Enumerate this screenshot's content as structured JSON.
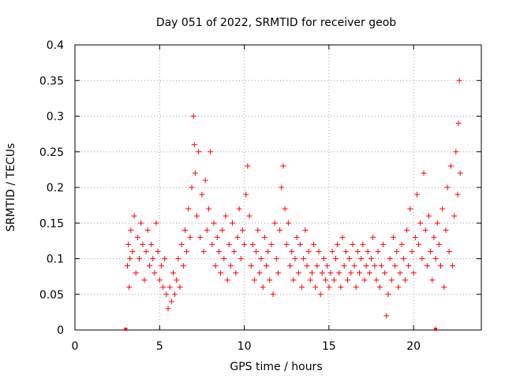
{
  "chart_data": {
    "type": "scatter",
    "title": "Day 051 of 2022, SRMTID for receiver geob",
    "xlabel": "GPS time / hours",
    "ylabel": "SRMTID / TECUs",
    "xlim": [
      0,
      24
    ],
    "ylim": [
      0,
      0.4
    ],
    "xticks": [
      0,
      5,
      10,
      15,
      20
    ],
    "xtick_labels": [
      "0",
      "5",
      "10",
      "15",
      "20"
    ],
    "yticks": [
      0,
      0.05,
      0.1,
      0.15,
      0.2,
      0.25,
      0.3,
      0.35,
      0.4
    ],
    "ytick_labels": [
      "0",
      "0.05",
      "0.1",
      "0.15",
      "0.2",
      "0.25",
      "0.3",
      "0.35",
      "0.4"
    ],
    "grid": true,
    "marker": "plus",
    "colors": {
      "series": "#ff0000",
      "grid": "#a0a0a0",
      "axis": "#000000"
    },
    "series": [
      {
        "name": "SRMTID",
        "x": [
          3.1,
          3.15,
          3.2,
          3.25,
          3.3,
          3.4,
          3.5,
          3.6,
          3.7,
          3.8,
          3.9,
          4.0,
          4.1,
          4.2,
          4.3,
          4.4,
          4.5,
          4.6,
          4.7,
          4.8,
          4.9,
          5.0,
          5.1,
          5.2,
          5.3,
          5.4,
          5.5,
          5.6,
          5.7,
          5.8,
          5.9,
          6.0,
          6.1,
          6.2,
          6.3,
          6.4,
          6.5,
          6.6,
          6.7,
          6.8,
          6.9,
          7.0,
          7.05,
          7.1,
          7.2,
          7.3,
          7.4,
          7.5,
          7.6,
          7.7,
          7.8,
          7.9,
          8.0,
          8.1,
          8.2,
          8.3,
          8.4,
          8.5,
          8.6,
          8.7,
          8.8,
          8.9,
          9.0,
          9.1,
          9.2,
          9.3,
          9.4,
          9.5,
          9.6,
          9.7,
          9.8,
          9.9,
          10.0,
          10.1,
          10.2,
          10.3,
          10.4,
          10.5,
          10.6,
          10.7,
          10.8,
          10.9,
          11.0,
          11.1,
          11.2,
          11.3,
          11.4,
          11.5,
          11.6,
          11.7,
          11.8,
          11.9,
          12.0,
          12.1,
          12.2,
          12.3,
          12.4,
          12.5,
          12.6,
          12.7,
          12.8,
          12.9,
          13.0,
          13.1,
          13.2,
          13.3,
          13.4,
          13.5,
          13.6,
          13.7,
          13.8,
          13.9,
          14.0,
          14.1,
          14.2,
          14.3,
          14.4,
          14.5,
          14.6,
          14.7,
          14.8,
          14.9,
          15.0,
          15.1,
          15.2,
          15.3,
          15.4,
          15.5,
          15.6,
          15.7,
          15.8,
          15.9,
          16.0,
          16.1,
          16.2,
          16.3,
          16.4,
          16.5,
          16.6,
          16.7,
          16.8,
          16.9,
          17.0,
          17.1,
          17.2,
          17.3,
          17.4,
          17.5,
          17.6,
          17.7,
          17.8,
          17.9,
          18.0,
          18.1,
          18.2,
          18.3,
          18.4,
          18.5,
          18.6,
          18.7,
          18.8,
          18.9,
          19.0,
          19.1,
          19.2,
          19.3,
          19.4,
          19.5,
          19.6,
          19.7,
          19.8,
          19.9,
          20.0,
          20.1,
          20.2,
          20.3,
          20.4,
          20.5,
          20.6,
          20.7,
          20.8,
          20.9,
          21.0,
          21.1,
          21.2,
          21.3,
          21.4,
          21.5,
          21.6,
          21.7,
          21.8,
          21.9,
          22.0,
          22.1,
          22.2,
          22.3,
          22.4,
          22.5,
          22.6,
          22.65,
          22.7,
          22.75
        ],
        "y": [
          0.09,
          0.12,
          0.06,
          0.1,
          0.14,
          0.11,
          0.16,
          0.08,
          0.13,
          0.1,
          0.15,
          0.12,
          0.07,
          0.11,
          0.14,
          0.09,
          0.12,
          0.1,
          0.08,
          0.15,
          0.11,
          0.07,
          0.09,
          0.06,
          0.1,
          0.05,
          0.03,
          0.06,
          0.04,
          0.08,
          0.05,
          0.07,
          0.1,
          0.06,
          0.12,
          0.09,
          0.14,
          0.11,
          0.17,
          0.13,
          0.2,
          0.3,
          0.26,
          0.22,
          0.16,
          0.25,
          0.13,
          0.19,
          0.11,
          0.21,
          0.14,
          0.17,
          0.25,
          0.12,
          0.15,
          0.09,
          0.13,
          0.11,
          0.08,
          0.14,
          0.1,
          0.16,
          0.07,
          0.12,
          0.09,
          0.15,
          0.11,
          0.08,
          0.13,
          0.17,
          0.1,
          0.14,
          0.12,
          0.19,
          0.23,
          0.16,
          0.09,
          0.12,
          0.07,
          0.11,
          0.14,
          0.08,
          0.1,
          0.06,
          0.13,
          0.09,
          0.11,
          0.07,
          0.12,
          0.05,
          0.15,
          0.1,
          0.08,
          0.14,
          0.2,
          0.23,
          0.17,
          0.12,
          0.15,
          0.09,
          0.11,
          0.07,
          0.1,
          0.13,
          0.08,
          0.12,
          0.06,
          0.1,
          0.14,
          0.09,
          0.11,
          0.07,
          0.08,
          0.12,
          0.06,
          0.09,
          0.11,
          0.05,
          0.08,
          0.1,
          0.07,
          0.09,
          0.06,
          0.08,
          0.11,
          0.07,
          0.1,
          0.12,
          0.08,
          0.06,
          0.13,
          0.09,
          0.11,
          0.07,
          0.1,
          0.08,
          0.12,
          0.09,
          0.06,
          0.11,
          0.08,
          0.1,
          0.12,
          0.07,
          0.09,
          0.11,
          0.08,
          0.1,
          0.13,
          0.09,
          0.07,
          0.11,
          0.06,
          0.09,
          0.12,
          0.08,
          0.02,
          0.05,
          0.1,
          0.07,
          0.13,
          0.09,
          0.11,
          0.06,
          0.08,
          0.12,
          0.1,
          0.07,
          0.14,
          0.09,
          0.17,
          0.11,
          0.08,
          0.13,
          0.19,
          0.12,
          0.15,
          0.1,
          0.22,
          0.14,
          0.09,
          0.16,
          0.11,
          0.07,
          0.13,
          0.1,
          0.15,
          0.12,
          0.09,
          0.17,
          0.06,
          0.14,
          0.2,
          0.11,
          0.23,
          0.09,
          0.16,
          0.25,
          0.19,
          0.29,
          0.35,
          0.22
        ]
      }
    ],
    "markers_on_axis": [
      3.0,
      21.3
    ]
  }
}
